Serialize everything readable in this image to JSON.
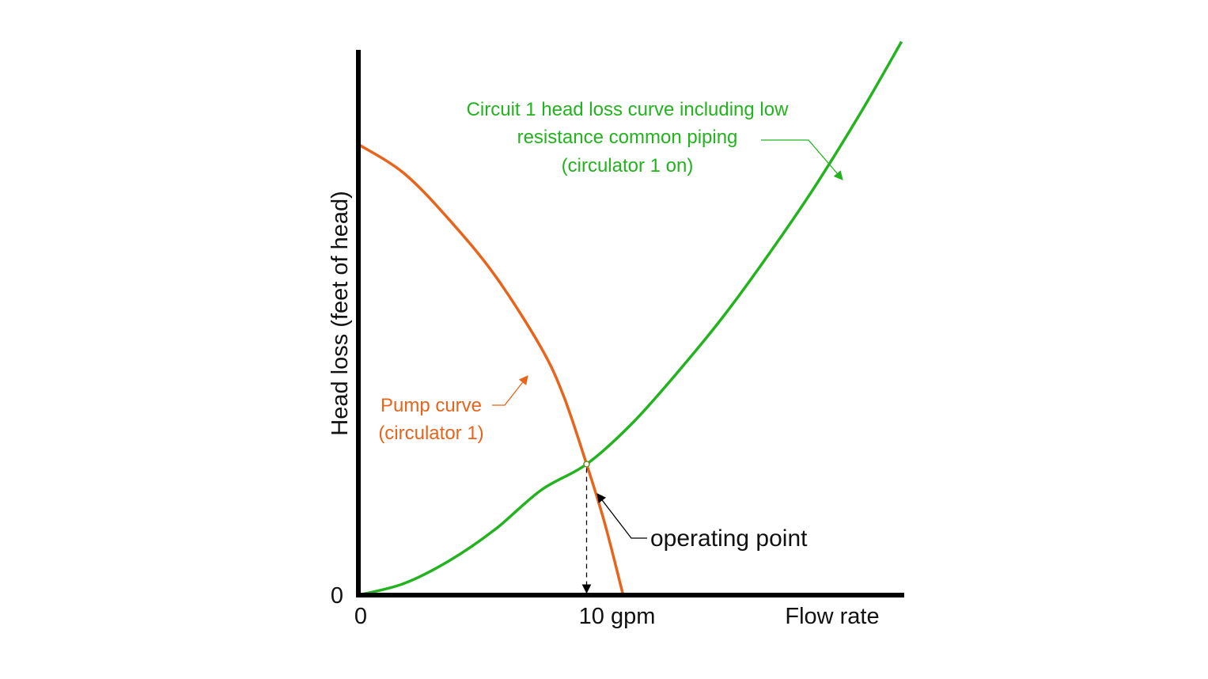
{
  "chart_data": {
    "type": "line",
    "title": "",
    "xlabel": "Flow rate",
    "ylabel": "Head loss (feet of head)",
    "x_tick_labels": [
      "0",
      "10 gpm"
    ],
    "y_tick_labels": [
      "0"
    ],
    "xlim": [
      0,
      23.8
    ],
    "ylim": [
      0,
      24
    ],
    "grid": false,
    "colors": {
      "axis": "#000000",
      "system_curve": "#22b31e",
      "pump_curve": "#e8641b"
    },
    "series": [
      {
        "key": "system",
        "x": [
          0,
          2,
          4,
          6,
          8,
          10,
          12,
          14,
          16,
          18,
          20,
          22,
          23.8
        ],
        "y": [
          0,
          0.52,
          1.55,
          2.95,
          4.7,
          5.87,
          7.7,
          10.0,
          12.5,
          15.3,
          18.3,
          21.6,
          24.8
        ]
      },
      {
        "key": "pump",
        "x": [
          0,
          2,
          4,
          6,
          8,
          9,
          10,
          10.8,
          11.6
        ],
        "y": [
          20.2,
          18.9,
          16.8,
          14.3,
          11.1,
          8.9,
          5.87,
          3.2,
          0
        ]
      }
    ],
    "annotations": {
      "system_label": {
        "lines": [
          "Circuit 1 head loss curve including  low",
          "resistance common piping",
          "(circulator 1 on)"
        ]
      },
      "pump_label": {
        "lines": [
          "Pump curve",
          "(circulator 1)"
        ]
      },
      "operating_point": {
        "label": "operating point",
        "x": 10,
        "y": 5.87
      }
    }
  }
}
